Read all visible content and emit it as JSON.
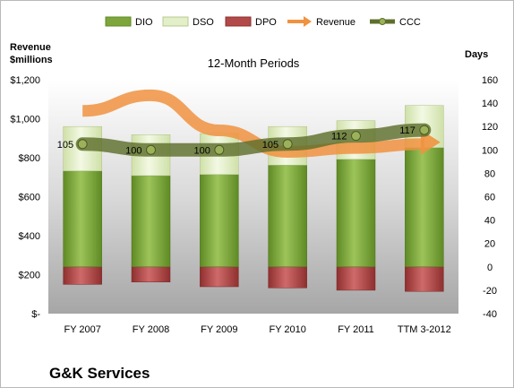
{
  "chart_data": {
    "type": "bar",
    "title": "12-Month Periods",
    "company": "G&K Services",
    "left_axis_label": [
      "Revenue",
      "$millions"
    ],
    "right_axis_label": "Days",
    "categories": [
      "FY 2007",
      "FY 2008",
      "FY 2009",
      "FY 2010",
      "FY 2011",
      "TTM 3-2012"
    ],
    "left_axis": {
      "min": 0,
      "max": 1200,
      "step": 200,
      "tick_labels": [
        "$-",
        "$200",
        "$400",
        "$600",
        "$800",
        "$1,000",
        "$1,200"
      ]
    },
    "right_axis": {
      "min": -40,
      "max": 160,
      "step": 20,
      "tick_labels": [
        "-40",
        "-20",
        "0",
        "20",
        "40",
        "60",
        "80",
        "100",
        "120",
        "140",
        "160"
      ]
    },
    "stacked_series_units": "days",
    "series": [
      {
        "name": "DIO",
        "kind": "bar",
        "color": "#7ea63c",
        "values": [
          82,
          78,
          79,
          87,
          92,
          102
        ]
      },
      {
        "name": "DSO",
        "kind": "bar",
        "color": "#e3efc9",
        "values": [
          38,
          35,
          35,
          33,
          33,
          36
        ]
      },
      {
        "name": "DPO",
        "kind": "bar-negative",
        "color": "#b24a4a",
        "values": [
          -15,
          -13,
          -17,
          -18,
          -20,
          -21
        ]
      },
      {
        "name": "Revenue",
        "kind": "arrow-line",
        "axis": "left",
        "color": "#f0923f",
        "values": [
          1040,
          1120,
          940,
          830,
          850,
          870
        ]
      },
      {
        "name": "CCC",
        "kind": "line",
        "axis": "right",
        "color": "#5e6f2c",
        "values": [
          105,
          100,
          100,
          105,
          112,
          117
        ],
        "data_labels": [
          "105",
          "100",
          "100",
          "105",
          "112",
          "117"
        ]
      }
    ],
    "grid": false,
    "legend_position": "top"
  }
}
